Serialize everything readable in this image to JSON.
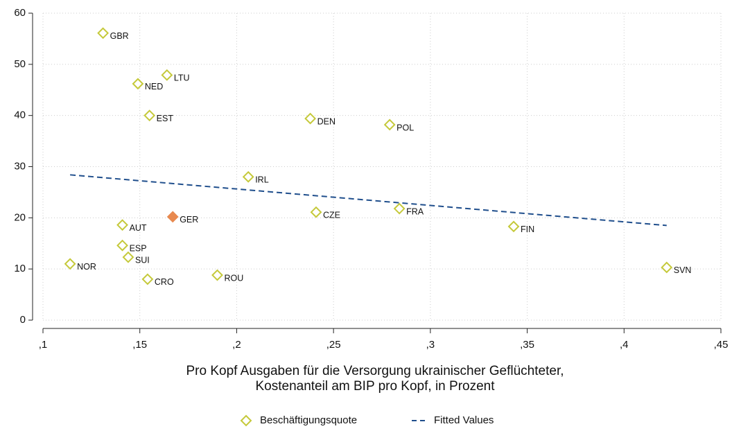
{
  "chart_data": {
    "type": "scatter",
    "xlabel": [
      "Pro Kopf Ausgaben für die Versorgung ukrainischer Geflüchteter,",
      "Kostenanteil am BIP pro Kopf, in Prozent"
    ],
    "xlim": [
      0.1,
      0.45
    ],
    "xticks": [
      {
        "value": 0.1,
        "label": ",1"
      },
      {
        "value": 0.15,
        "label": ",15"
      },
      {
        "value": 0.2,
        "label": ",2"
      },
      {
        "value": 0.25,
        "label": ",25"
      },
      {
        "value": 0.3,
        "label": ",3"
      },
      {
        "value": 0.35,
        "label": ",35"
      },
      {
        "value": 0.4,
        "label": ",4"
      },
      {
        "value": 0.45,
        "label": ",45"
      }
    ],
    "ylim": [
      0,
      60
    ],
    "yticks": [
      0,
      10,
      20,
      30,
      40,
      50,
      60
    ],
    "grid": true,
    "legend": "bottom",
    "series": [
      {
        "name": "Beschäftigungsquote",
        "color": "#c5c93a",
        "labels": [
          "GBR",
          "LTU",
          "NED",
          "EST",
          "DEN",
          "POL",
          "IRL",
          "CZE",
          "FRA",
          "GER",
          "AUT",
          "FIN",
          "ESP",
          "SUI",
          "NOR",
          "SVN",
          "CRO",
          "ROU"
        ],
        "x": [
          0.131,
          0.164,
          0.149,
          0.155,
          0.238,
          0.279,
          0.206,
          0.241,
          0.284,
          0.167,
          0.141,
          0.343,
          0.141,
          0.144,
          0.114,
          0.422,
          0.154,
          0.19
        ],
        "values": [
          56.1,
          47.9,
          46.2,
          40.0,
          39.4,
          38.2,
          28.0,
          21.1,
          21.8,
          20.2,
          18.6,
          18.3,
          14.6,
          12.3,
          11.0,
          10.3,
          8.0,
          8.8
        ],
        "point_colors": [
          "#c5c93a",
          "#c5c93a",
          "#c5c93a",
          "#c5c93a",
          "#c5c93a",
          "#c5c93a",
          "#c5c93a",
          "#c5c93a",
          "#c5c93a",
          "#e8894f",
          "#c5c93a",
          "#c5c93a",
          "#c5c93a",
          "#c5c93a",
          "#c5c93a",
          "#c5c93a",
          "#c5c93a",
          "#c5c93a"
        ]
      },
      {
        "name": "Fitted Values",
        "color": "#1f4e8c",
        "style": "dashed",
        "x": [
          0.114,
          0.422
        ],
        "values": [
          28.4,
          18.5
        ]
      }
    ]
  }
}
